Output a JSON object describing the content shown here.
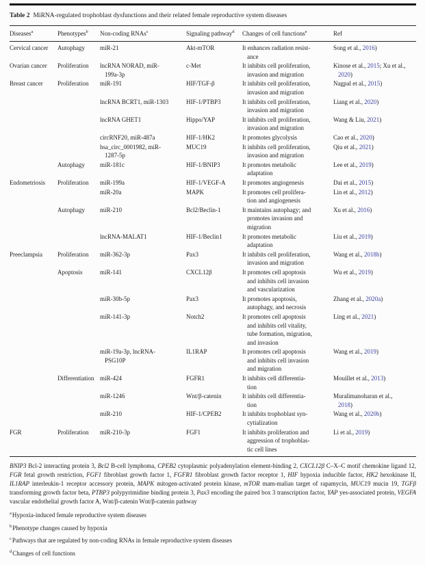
{
  "colors": {
    "link_blue": "#3a3f9f",
    "text": "#1e1e1e",
    "rule": "#141414"
  },
  "caption": {
    "label": "Table 2",
    "text": "MiRNA-regulated trophoblast dysfunctions and their related female reproductive system diseases"
  },
  "table": {
    "headers": [
      {
        "label": "Diseases",
        "sup": "a"
      },
      {
        "label": "Phenotypes",
        "sup": "b"
      },
      {
        "label": "Non-coding RNAs",
        "sup": "c"
      },
      {
        "label": "Signaling pathway",
        "sup": "d"
      },
      {
        "label": "Changes of cell functions",
        "sup": "e"
      },
      {
        "label": "Ref",
        "sup": ""
      }
    ],
    "rows": [
      {
        "disease": "Cervical cancer",
        "phenotype": "Autophagy",
        "rna": "miR-21",
        "pathway": "Akt-mTOR",
        "function": "It enhances radiation resist-\nance",
        "ref": [
          {
            "t": "Song et al., "
          },
          {
            "t": "2016",
            "link": true
          },
          {
            "t": ")"
          }
        ]
      },
      {
        "disease": "Ovarian cancer",
        "phenotype": "Proliferation",
        "rna": "lncRNA NORAD, miR-\n199a-3p",
        "pathway": "c-Met",
        "function": "It inhibits cell proliferation,\ninvasion and migration",
        "ref": [
          {
            "t": "Kinose et al., "
          },
          {
            "t": "2015",
            "link": true
          },
          {
            "t": "; Xu et al.,\n"
          },
          {
            "t": "2020",
            "link": true
          },
          {
            "t": ")"
          }
        ]
      },
      {
        "disease": "Breast cancer",
        "phenotype": "Proliferation",
        "rna": "miR-191",
        "pathway": "HIF/TGF-β",
        "function": "It inhibits cell proliferation,\ninvasion and migration",
        "ref": [
          {
            "t": "Nagpal et al., "
          },
          {
            "t": "2015",
            "link": true
          },
          {
            "t": ")"
          }
        ]
      },
      {
        "disease": "",
        "phenotype": "",
        "rna": "lncRNA BCRT1, miR-1303",
        "pathway": "HIF-1/PTBP3",
        "function": "It inhibits cell proliferation,\ninvasion and migration",
        "ref": [
          {
            "t": "Liang et al., "
          },
          {
            "t": "2020",
            "link": true
          },
          {
            "t": ")"
          }
        ]
      },
      {
        "disease": "",
        "phenotype": "",
        "rna": "lncRNA GHET1",
        "pathway": "Hippo/YAP",
        "function": "It inhibits cell proliferation,\ninvasion and migration",
        "ref": [
          {
            "t": "Wang & Liu, "
          },
          {
            "t": "2021",
            "link": true
          },
          {
            "t": ")"
          }
        ]
      },
      {
        "disease": "",
        "phenotype": "",
        "rna": "circRNF20, miR-487a",
        "pathway": "HIF-1/HK2",
        "function": "It promotes glycolysis",
        "ref": [
          {
            "t": "Cao et al., "
          },
          {
            "t": "2020",
            "link": true
          },
          {
            "t": ")"
          }
        ]
      },
      {
        "disease": "",
        "phenotype": "",
        "rna": "hsa_circ_0001982, miR-\n1287-5p",
        "pathway": "MUC19",
        "function": "It inhibits cell proliferation,\ninvasion and migration",
        "ref": [
          {
            "t": "Qiu et al., "
          },
          {
            "t": "2021",
            "link": true
          },
          {
            "t": ")"
          }
        ]
      },
      {
        "disease": "",
        "phenotype": "Autophagy",
        "rna": "miR-181c",
        "pathway": "HIF-1/BNIP3",
        "function": "It promotes metabolic\nadaptation",
        "ref": [
          {
            "t": "Lee et al., "
          },
          {
            "t": "2019",
            "link": true
          },
          {
            "t": ")"
          }
        ]
      },
      {
        "disease": "Endometriosis",
        "phenotype": "Proliferation",
        "rna": "miR-199a",
        "pathway": "HIF-1/VEGF-A",
        "function": "It promotes angiogenesis",
        "ref": [
          {
            "t": "Dai et al., "
          },
          {
            "t": "2015",
            "link": true
          },
          {
            "t": ")"
          }
        ]
      },
      {
        "disease": "",
        "phenotype": "",
        "rna": "miR-20a",
        "pathway": "MAPK",
        "function": "It promotes cell prolifera-\ntion and angiogenesis",
        "ref": [
          {
            "t": "Lin et al., "
          },
          {
            "t": "2012",
            "link": true
          },
          {
            "t": ")"
          }
        ]
      },
      {
        "disease": "",
        "phenotype": "Autophagy",
        "rna": "miR-210",
        "pathway": "Bcl2/Beclin-1",
        "function": "It maintains autophagy; and\npromotes invasion and\nmigration",
        "ref": [
          {
            "t": "Xu et al., "
          },
          {
            "t": "2016",
            "link": true
          },
          {
            "t": ")"
          }
        ]
      },
      {
        "disease": "",
        "phenotype": "",
        "rna": "lncRNA-MALAT1",
        "pathway": "HIF-1/Beclin1",
        "function": "It promotes metabolic\nadaptation",
        "ref": [
          {
            "t": "Liu et al., "
          },
          {
            "t": "2019",
            "link": true
          },
          {
            "t": ")"
          }
        ]
      },
      {
        "disease": "Preeclampsia",
        "phenotype": "Proliferation",
        "rna": "miR-362-3p",
        "pathway": "Pax3",
        "function": "It inhibits cell proliferation,\ninvasion and migration",
        "ref": [
          {
            "t": "Wang et al., "
          },
          {
            "t": "2018b",
            "link": true
          },
          {
            "t": ")"
          }
        ]
      },
      {
        "disease": "",
        "phenotype": "Apoptosis",
        "rna": "miR-141",
        "pathway": "CXCL12β",
        "function": "It promotes cell apoptosis\nand inhibits cell invasion\nand vascularization",
        "ref": [
          {
            "t": "Wu et al., "
          },
          {
            "t": "2019",
            "link": true
          },
          {
            "t": ")"
          }
        ]
      },
      {
        "disease": "",
        "phenotype": "",
        "rna": "miR-30b-5p",
        "pathway": "Pax3",
        "function": "It promotes apoptosis,\nautophagy, and necrosis",
        "ref": [
          {
            "t": "Zhang et al., "
          },
          {
            "t": "2020a",
            "link": true
          },
          {
            "t": ")"
          }
        ]
      },
      {
        "disease": "",
        "phenotype": "",
        "rna": "miR-141-3p",
        "pathway": "Notch2",
        "function": "It promotes cell apoptosis\nand inhibits cell vitality,\ntube formation, migration,\nand invasion",
        "ref": [
          {
            "t": "Ling et al., "
          },
          {
            "t": "2021",
            "link": true
          },
          {
            "t": ")"
          }
        ]
      },
      {
        "disease": "",
        "phenotype": "",
        "rna": "miR-19a-3p, lncRNA-\nPSG10P",
        "pathway": "IL1RAP",
        "function": "It promotes cell apoptosis\nand inhibits cell invasion\nand migration",
        "ref": [
          {
            "t": "Wang et al., "
          },
          {
            "t": "2019",
            "link": true
          },
          {
            "t": ")"
          }
        ]
      },
      {
        "disease": "",
        "phenotype": "Differentiation",
        "rna": "miR-424",
        "pathway": "FGFR1",
        "function": "It inhibits cell differentia-\ntion",
        "ref": [
          {
            "t": "Mouillet et al., "
          },
          {
            "t": "2013",
            "link": true
          },
          {
            "t": ")"
          }
        ]
      },
      {
        "disease": "",
        "phenotype": "",
        "rna": "miR-1246",
        "pathway": "Wnt/β-catenin",
        "function": "It inhibits cell differentia-\ntion",
        "ref": [
          {
            "t": "Muralimanoharan et al.,\n"
          },
          {
            "t": "2018",
            "link": true
          },
          {
            "t": ")"
          }
        ]
      },
      {
        "disease": "",
        "phenotype": "",
        "rna": "miR-210",
        "pathway": "HIF-1/CPEB2",
        "function": "It inhibits trophoblast syn-\ncytialization",
        "ref": [
          {
            "t": "Wang et al., "
          },
          {
            "t": "2020b",
            "link": true
          },
          {
            "t": ")"
          }
        ]
      },
      {
        "disease": "FGR",
        "phenotype": "Proliferation",
        "rna": "miR-210-3p",
        "pathway": "FGF1",
        "function": "It inhibits proliferation and\naggression of trophoblas-\ntic cell lines",
        "ref": [
          {
            "t": "Li et al., "
          },
          {
            "t": "2019",
            "link": true
          },
          {
            "t": ")"
          }
        ]
      }
    ]
  },
  "abbreviations": [
    {
      "t": "BNIP3",
      "i": true
    },
    {
      "t": " Bcl-2 interacting protein 3, "
    },
    {
      "t": "Bcl2",
      "i": true
    },
    {
      "t": " B-cell lymphoma, "
    },
    {
      "t": "CPEB2",
      "i": true
    },
    {
      "t": " cytoplasmic polyadenylation element-binding 2, "
    },
    {
      "t": "CXCL12β",
      "i": true
    },
    {
      "t": " C–X–C motif chemokine ligand 12, "
    },
    {
      "t": "FGR",
      "i": true
    },
    {
      "t": " fetal growth restriction, "
    },
    {
      "t": "FGF1",
      "i": true
    },
    {
      "t": " fibroblast growth factor 1, "
    },
    {
      "t": "FGFR1",
      "i": true
    },
    {
      "t": " fibroblast growth factor receptor 1, "
    },
    {
      "t": "HIF",
      "i": true
    },
    {
      "t": " hypoxia inducible factor, "
    },
    {
      "t": "HK2",
      "i": true
    },
    {
      "t": " hexokinase II, "
    },
    {
      "t": "IL1RAP",
      "i": true
    },
    {
      "t": " interleukin-1 receptor accessory protein, "
    },
    {
      "t": "MAPK",
      "i": true
    },
    {
      "t": " mitogen-activated protein kinase, "
    },
    {
      "t": "mTOR",
      "i": true
    },
    {
      "t": " mam-malian target of rapamycin, "
    },
    {
      "t": "MUC19",
      "i": true
    },
    {
      "t": " mucin 19, "
    },
    {
      "t": "TGFβ",
      "i": true
    },
    {
      "t": " transforming growth factor beta, "
    },
    {
      "t": "PTBP3",
      "i": true
    },
    {
      "t": " polypyrimidine binding protein 3, "
    },
    {
      "t": "Pax3",
      "i": true
    },
    {
      "t": " encoding the paired box 3 transcription factor, "
    },
    {
      "t": "YAP",
      "i": true
    },
    {
      "t": " yes-associated protein, "
    },
    {
      "t": "VEGFA",
      "i": true
    },
    {
      "t": " vascular endothelial growth factor A, Wnt/β-catenin Wnt/β-catenin pathway"
    }
  ],
  "footnotes": [
    {
      "sup": "a",
      "text": "Hypoxia-induced female reproductive system diseases"
    },
    {
      "sup": "b",
      "text": "Phenotype changes caused by hypoxia"
    },
    {
      "sup": "c",
      "text": "Pathways that are regulated by non-coding RNAs in female reproductive system diseases"
    },
    {
      "sup": "d",
      "text": "Changes of cell functions"
    }
  ]
}
